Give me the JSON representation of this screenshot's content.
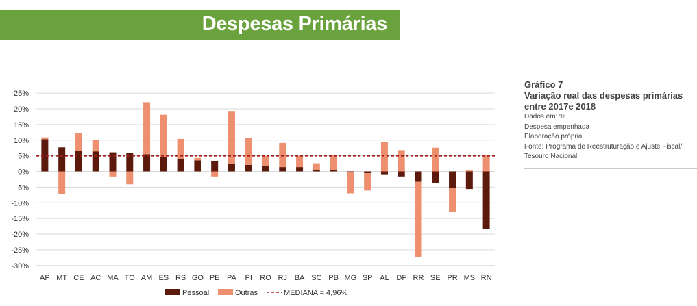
{
  "header": {
    "title": "Despesas Primárias"
  },
  "sidebar": {
    "label": "Gráfico 7",
    "subtitle_lines": [
      "Variação real das despesas primárias",
      "entre 2017e 2018"
    ],
    "notes": [
      "Dados em: %",
      "Despesa empenhada",
      "Elaboração própria",
      "Fonte: Programa de Reestruturação e Ajuste Fiscal/",
      "Tesouro Nacional"
    ]
  },
  "chart_data": {
    "type": "bar",
    "stacked": true,
    "categories": [
      "AP",
      "MT",
      "CE",
      "AC",
      "MA",
      "TO",
      "AM",
      "ES",
      "RS",
      "GO",
      "PE",
      "PA",
      "PI",
      "RO",
      "RJ",
      "BA",
      "SC",
      "PB",
      "MG",
      "SP",
      "AL",
      "DF",
      "RR",
      "SE",
      "PR",
      "MS",
      "RN"
    ],
    "series": [
      {
        "name": "Pessoal",
        "color": "#5b1a0c",
        "values": [
          10.3,
          7.7,
          6.6,
          6.4,
          6.1,
          5.8,
          5.5,
          4.5,
          4.1,
          3.5,
          3.4,
          2.5,
          2.1,
          1.8,
          1.4,
          1.4,
          0.5,
          0.4,
          -0.1,
          -0.4,
          -0.9,
          -1.6,
          -3.3,
          -3.6,
          -5.4,
          -5.6,
          -18.4
        ]
      },
      {
        "name": "Outras",
        "color": "#ee8f6f",
        "values": [
          0.6,
          -7.3,
          5.7,
          3.6,
          -1.6,
          -4.1,
          16.6,
          13.6,
          6.3,
          0.8,
          -1.6,
          16.8,
          8.6,
          3.1,
          7.7,
          3.6,
          2.1,
          4.9,
          -6.9,
          -5.7,
          9.4,
          6.8,
          -24.1,
          7.6,
          -7.4,
          0.3,
          5.1
        ]
      }
    ],
    "reference_line": {
      "name": "MEDIANA = 4,96%",
      "value": 4.96,
      "color": "#a11c1c",
      "style": "dashed"
    },
    "y_ticks": [
      "-30%",
      "-25%",
      "-20%",
      "-15%",
      "-10%",
      "-5%",
      "0%",
      "5%",
      "10%",
      "15%",
      "20%",
      "25%"
    ],
    "ylim": [
      -30,
      25
    ],
    "grid": true,
    "legend_position": "bottom"
  }
}
